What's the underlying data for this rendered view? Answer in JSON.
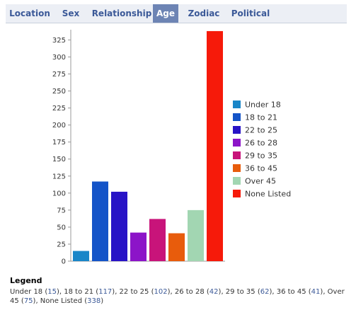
{
  "tabs": [
    {
      "label": "Location",
      "active": false
    },
    {
      "label": "Sex",
      "active": false
    },
    {
      "label": "Relationship",
      "active": false
    },
    {
      "label": "Age",
      "active": true
    },
    {
      "label": "Zodiac",
      "active": false
    },
    {
      "label": "Political",
      "active": false
    }
  ],
  "colors": {
    "tab_bg": "#eceff5",
    "tab_active_bg": "#6d84b4",
    "link": "#3b5998"
  },
  "chart_data": {
    "type": "bar",
    "categories": [
      "Under 18",
      "18 to 21",
      "22 to 25",
      "26 to 28",
      "29 to 35",
      "36 to 45",
      "Over 45",
      "None Listed"
    ],
    "values": [
      15,
      117,
      102,
      42,
      62,
      41,
      75,
      338
    ],
    "colors": [
      "#1a86c8",
      "#1454c8",
      "#2813c6",
      "#8c14c8",
      "#c8147a",
      "#e85c0c",
      "#a2d6b2",
      "#f61a0a"
    ],
    "ylim": [
      0,
      340
    ],
    "yticks": [
      "0",
      "25",
      "50",
      "75",
      "100",
      "125",
      "150",
      "175",
      "200",
      "225",
      "250",
      "275",
      "300",
      "325"
    ],
    "legend_position": "right",
    "grid": false
  },
  "legend": {
    "title": "Legend",
    "entries": [
      {
        "label": "Under 18",
        "count": "15"
      },
      {
        "label": "18 to 21",
        "count": "117"
      },
      {
        "label": "22 to 25",
        "count": "102"
      },
      {
        "label": "26 to 28",
        "count": "42"
      },
      {
        "label": "29 to 35",
        "count": "62"
      },
      {
        "label": "36 to 45",
        "count": "41"
      },
      {
        "label": "Over 45",
        "count": "75"
      },
      {
        "label": "None Listed",
        "count": "338"
      }
    ]
  }
}
